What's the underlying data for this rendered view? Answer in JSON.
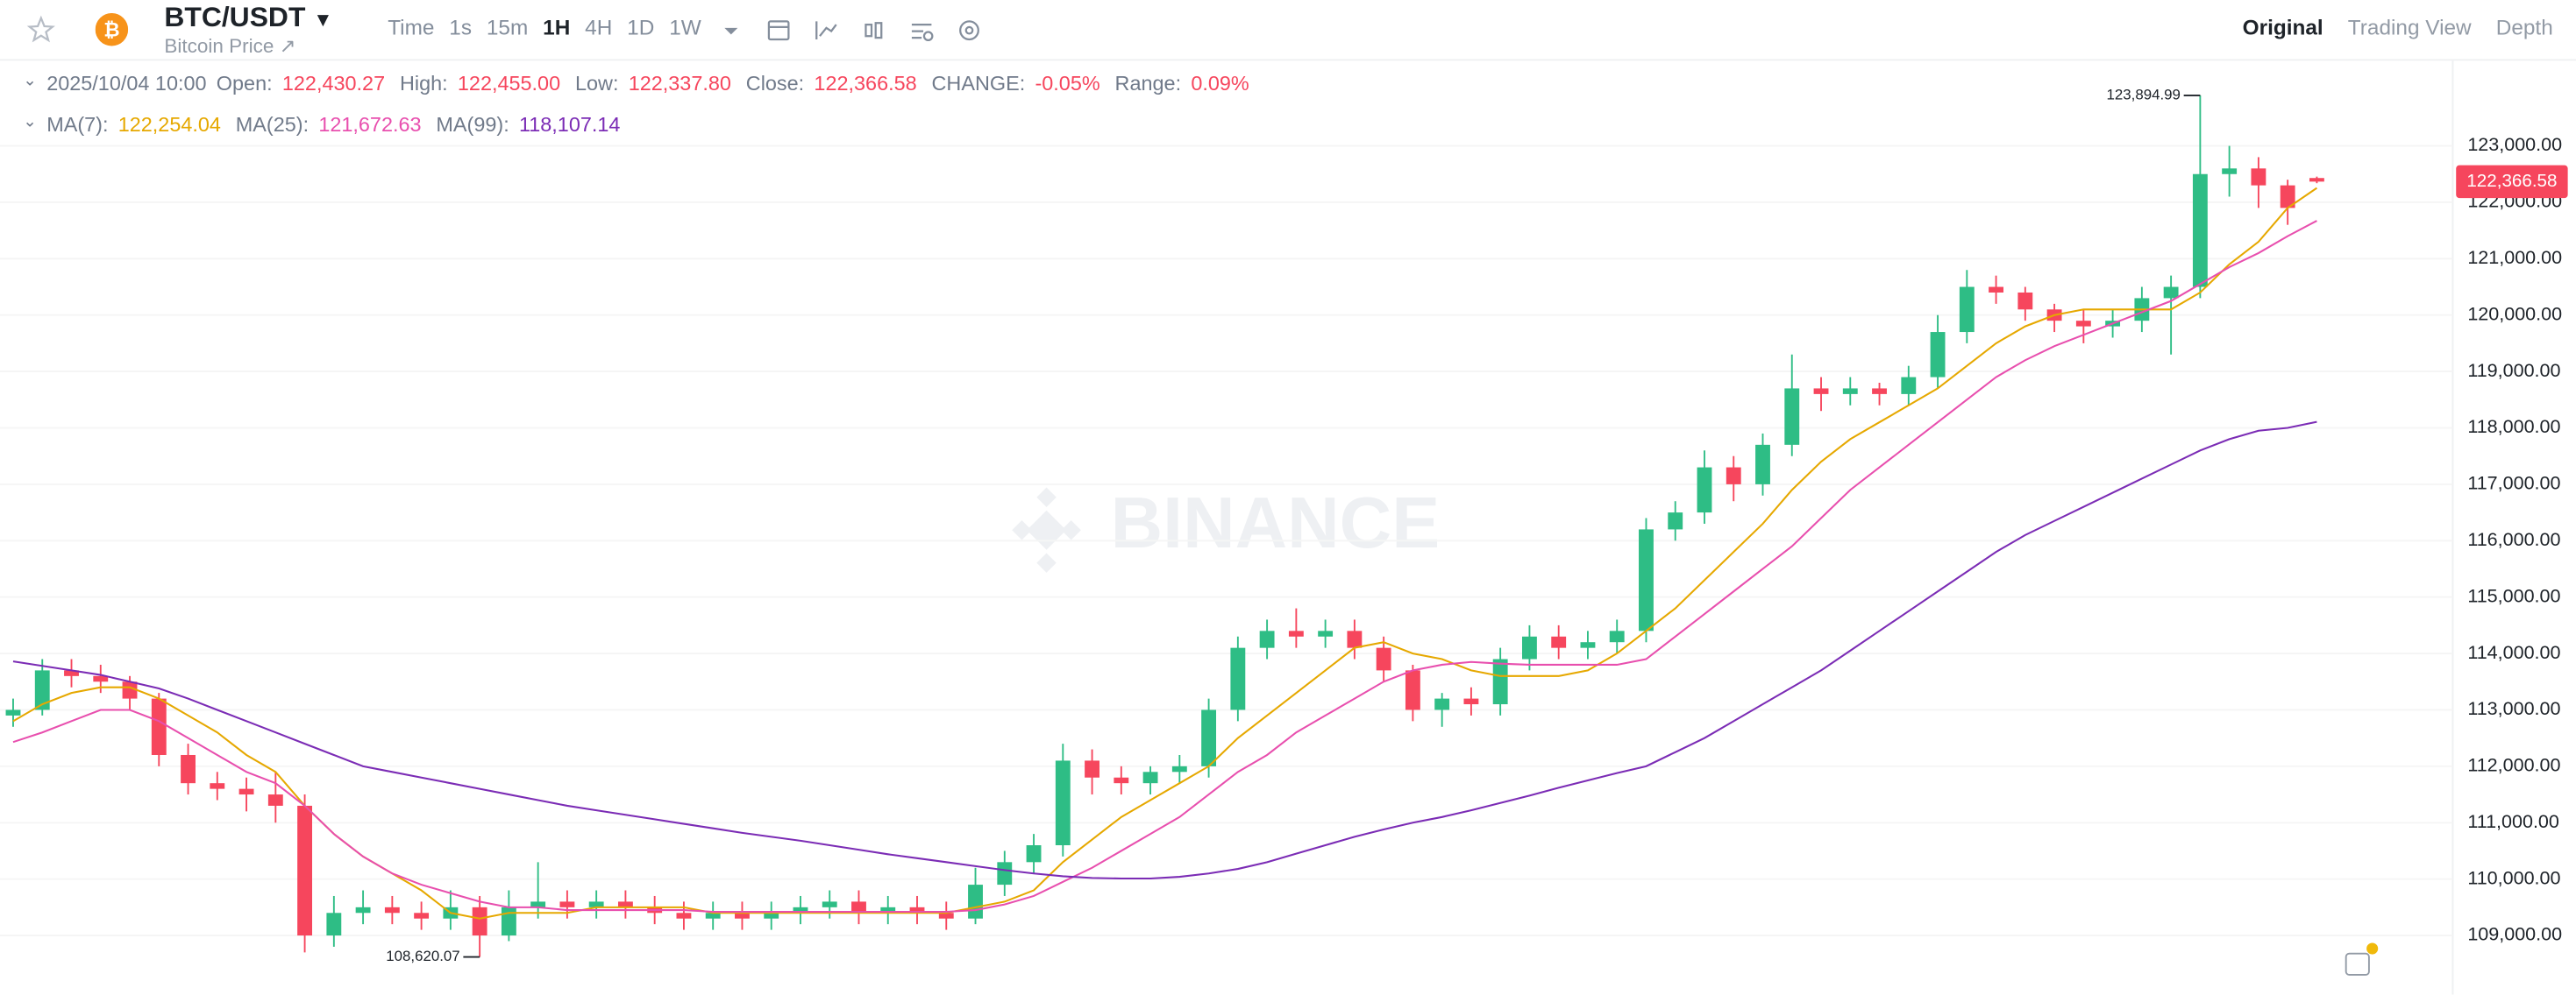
{
  "header": {
    "symbol": "BTC/USDT",
    "subtitle": "Bitcoin Price ↗",
    "intervals": [
      "Time",
      "1s",
      "15m",
      "1H",
      "4H",
      "1D",
      "1W"
    ],
    "active_interval": "1H",
    "views": [
      "Original",
      "Trading View",
      "Depth"
    ],
    "active_view": "Original"
  },
  "chart_data": {
    "type": "candlestick",
    "open": [
      112900,
      113000,
      113700,
      113600,
      113500,
      113200,
      112200,
      111700,
      111600,
      111500,
      111300,
      109000,
      109400,
      109500,
      109400,
      109300,
      109500,
      109000,
      109500,
      109600,
      109500,
      109600,
      109500,
      109400,
      109300,
      109400,
      109300,
      109400,
      109500,
      109600,
      109400,
      109500,
      109400,
      109300,
      109900,
      110300,
      110600,
      112100,
      111800,
      111700,
      111900,
      112000,
      113000,
      114100,
      114400,
      114300,
      114400,
      114100,
      113700,
      113000,
      113200,
      113100,
      113900,
      114300,
      114100,
      114200,
      114400,
      116200,
      116500,
      117300,
      117000,
      117700,
      118700,
      118600,
      118700,
      118600,
      118900,
      119700,
      120500,
      120400,
      120100,
      119900,
      119800,
      119900,
      120300,
      120500,
      122500,
      122600,
      122300,
      122430.27
    ],
    "high": [
      113200,
      113900,
      113900,
      113800,
      113600,
      113300,
      112400,
      111900,
      111800,
      111900,
      111500,
      109700,
      109800,
      109700,
      109600,
      109800,
      109700,
      109800,
      110300,
      109800,
      109800,
      109800,
      109700,
      109600,
      109600,
      109600,
      109600,
      109700,
      109800,
      109800,
      109700,
      109700,
      109600,
      110200,
      110500,
      110800,
      112400,
      112300,
      112000,
      112000,
      112200,
      113200,
      114300,
      114600,
      114800,
      114600,
      114600,
      114300,
      113800,
      113300,
      113400,
      114100,
      114500,
      114500,
      114400,
      114600,
      116400,
      116700,
      117600,
      117500,
      117900,
      119300,
      118900,
      118900,
      118800,
      119100,
      120000,
      120800,
      120700,
      120500,
      120200,
      120100,
      120100,
      120500,
      120700,
      123894.99,
      123000,
      122800,
      122400,
      122455
    ],
    "low": [
      112700,
      112900,
      113400,
      113300,
      113000,
      112000,
      111500,
      111400,
      111200,
      111000,
      108700,
      108800,
      109200,
      109200,
      109100,
      109100,
      108620.07,
      108900,
      109300,
      109300,
      109300,
      109300,
      109200,
      109100,
      109100,
      109100,
      109100,
      109200,
      109300,
      109200,
      109200,
      109200,
      109100,
      109200,
      109700,
      110100,
      110400,
      111500,
      111500,
      111500,
      111700,
      111800,
      112800,
      113900,
      114100,
      114100,
      113900,
      113500,
      112800,
      112700,
      112900,
      112900,
      113700,
      113900,
      113900,
      114000,
      114200,
      116000,
      116300,
      116700,
      116800,
      117500,
      118300,
      118400,
      118400,
      118400,
      118700,
      119500,
      120200,
      119900,
      119700,
      119500,
      119600,
      119700,
      119300,
      120300,
      122100,
      121900,
      121600,
      122337.8
    ],
    "close": [
      113000,
      113700,
      113600,
      113500,
      113200,
      112200,
      111700,
      111600,
      111500,
      111300,
      109000,
      109400,
      109500,
      109400,
      109300,
      109500,
      109000,
      109500,
      109600,
      109500,
      109600,
      109500,
      109400,
      109300,
      109400,
      109300,
      109400,
      109500,
      109600,
      109400,
      109500,
      109400,
      109300,
      109900,
      110300,
      110600,
      112100,
      111800,
      111700,
      111900,
      112000,
      113000,
      114100,
      114400,
      114300,
      114400,
      114100,
      113700,
      113000,
      113200,
      113100,
      113900,
      114300,
      114100,
      114200,
      114400,
      116200,
      116500,
      117300,
      117000,
      117700,
      118700,
      118600,
      118700,
      118600,
      118900,
      119700,
      120500,
      120400,
      120100,
      119900,
      119800,
      119900,
      120300,
      120500,
      122500,
      122600,
      122300,
      121900,
      122366.58
    ],
    "up_color": "#2ebd85",
    "down_color": "#f6465d",
    "ylim": [
      108040,
      124510
    ],
    "yticks": [
      {
        "value": 109000,
        "label": "109,000.00"
      },
      {
        "value": 110000,
        "label": "110,000.00"
      },
      {
        "value": 111000,
        "label": "111,000.00"
      },
      {
        "value": 112000,
        "label": "112,000.00"
      },
      {
        "value": 113000,
        "label": "113,000.00"
      },
      {
        "value": 114000,
        "label": "114,000.00"
      },
      {
        "value": 115000,
        "label": "115,000.00"
      },
      {
        "value": 116000,
        "label": "116,000.00"
      },
      {
        "value": 117000,
        "label": "117,000.00"
      },
      {
        "value": 118000,
        "label": "118,000.00"
      },
      {
        "value": 119000,
        "label": "119,000.00"
      },
      {
        "value": 120000,
        "label": "120,000.00"
      },
      {
        "value": 121000,
        "label": "121,000.00"
      },
      {
        "value": 122000,
        "label": "122,000.00"
      },
      {
        "value": 123000,
        "label": "123,000.00"
      }
    ],
    "grid": true,
    "info": {
      "datetime": "2025/10/04 10:00",
      "fields": [
        {
          "name": "Open:",
          "label": "122,430.27"
        },
        {
          "name": "High:",
          "label": "122,455.00"
        },
        {
          "name": "Low:",
          "label": "122,337.80"
        },
        {
          "name": "Close:",
          "label": "122,366.58"
        },
        {
          "name": "CHANGE:",
          "label": "-0.05%"
        },
        {
          "name": "Range:",
          "label": "0.09%"
        }
      ]
    },
    "ma": [
      {
        "name": "MA(7):",
        "color": "#e6a800",
        "value_label": "122,254.04",
        "values": [
          112800,
          113100,
          113300,
          113400,
          113400,
          113200,
          112900,
          112600,
          112200,
          111900,
          111300,
          110800,
          110400,
          110100,
          109800,
          109400,
          109300,
          109400,
          109400,
          109400,
          109500,
          109500,
          109500,
          109500,
          109400,
          109400,
          109400,
          109400,
          109400,
          109400,
          109400,
          109400,
          109400,
          109500,
          109600,
          109800,
          110300,
          110700,
          111100,
          111400,
          111700,
          112000,
          112500,
          112900,
          113300,
          113700,
          114100,
          114200,
          114000,
          113900,
          113700,
          113600,
          113600,
          113600,
          113700,
          114000,
          114400,
          114800,
          115300,
          115800,
          116300,
          116900,
          117400,
          117800,
          118100,
          118400,
          118700,
          119100,
          119500,
          119800,
          120000,
          120100,
          120100,
          120100,
          120100,
          120400,
          120900,
          121300,
          121900,
          122254.04
        ]
      },
      {
        "name": "MA(25):",
        "color": "#e84fae",
        "value_label": "121,672.63",
        "values": [
          112430,
          112600,
          112800,
          113000,
          113000,
          112800,
          112500,
          112200,
          111900,
          111700,
          111300,
          110800,
          110400,
          110100,
          109900,
          109750,
          109600,
          109500,
          109500,
          109450,
          109450,
          109450,
          109450,
          109450,
          109420,
          109420,
          109420,
          109420,
          109420,
          109420,
          109420,
          109420,
          109420,
          109450,
          109550,
          109700,
          109950,
          110200,
          110500,
          110800,
          111100,
          111500,
          111900,
          112200,
          112600,
          112900,
          113200,
          113500,
          113700,
          113800,
          113850,
          113820,
          113800,
          113800,
          113800,
          113800,
          113900,
          114300,
          114700,
          115100,
          115500,
          115900,
          116400,
          116900,
          117300,
          117700,
          118100,
          118500,
          118900,
          119200,
          119450,
          119650,
          119850,
          120050,
          120250,
          120550,
          120850,
          121100,
          121400,
          121672.63
        ]
      },
      {
        "name": "MA(99):",
        "color": "#7b2cb5",
        "value_label": "118,107.14",
        "values": [
          113860,
          113780,
          113700,
          113620,
          113500,
          113380,
          113200,
          113000,
          112800,
          112600,
          112400,
          112200,
          112000,
          111900,
          111800,
          111700,
          111600,
          111500,
          111400,
          111300,
          111220,
          111140,
          111060,
          110980,
          110900,
          110820,
          110750,
          110680,
          110600,
          110520,
          110440,
          110370,
          110300,
          110230,
          110160,
          110100,
          110050,
          110020,
          110010,
          110010,
          110040,
          110100,
          110180,
          110300,
          110450,
          110600,
          110750,
          110880,
          111000,
          111100,
          111220,
          111350,
          111480,
          111620,
          111750,
          111880,
          112000,
          112250,
          112500,
          112800,
          113100,
          113400,
          113700,
          114050,
          114400,
          114750,
          115100,
          115450,
          115800,
          116100,
          116350,
          116600,
          116850,
          117100,
          117350,
          117600,
          117800,
          117950,
          118000,
          118107.14
        ]
      }
    ],
    "last_price_label": "122,366.58",
    "high_marker": {
      "value": 123894.99,
      "label": "123,894.99"
    },
    "low_marker": {
      "value": 108620.07,
      "label": "108,620.07"
    },
    "watermark": "BINANCE"
  }
}
